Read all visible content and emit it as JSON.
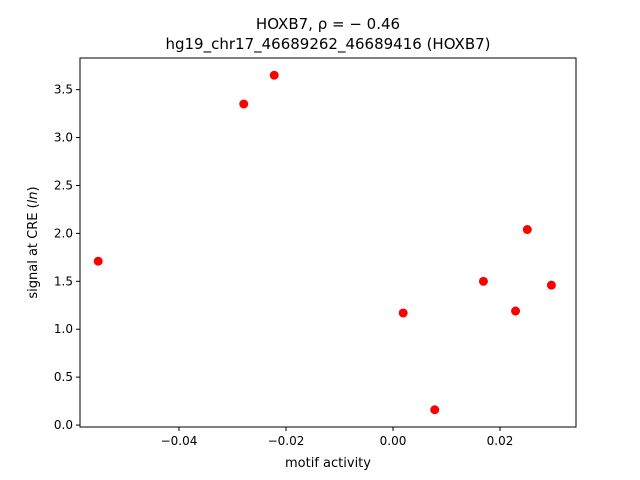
{
  "chart_data": {
    "type": "scatter",
    "title": "HOXB7, ρ = − 0.46",
    "subtitle": "hg19_chr17_46689262_46689416 (HOXB7)",
    "xlabel": "motif activity",
    "ylabel_prefix": "signal at CRE (",
    "ylabel_italic": "ln",
    "ylabel_suffix": ")",
    "xlim": [
      -0.0585,
      0.0342
    ],
    "ylim": [
      -0.02,
      3.83
    ],
    "xticks": [
      -0.04,
      -0.02,
      0.0,
      0.02
    ],
    "xtick_labels": [
      "−0.04",
      "−0.02",
      "0.00",
      "0.02"
    ],
    "yticks": [
      0.0,
      0.5,
      1.0,
      1.5,
      2.0,
      2.5,
      3.0,
      3.5
    ],
    "ytick_labels": [
      "0.0",
      "0.5",
      "1.0",
      "1.5",
      "2.0",
      "2.5",
      "3.0",
      "3.5"
    ],
    "grid": false,
    "marker_color": "#ff0000",
    "points": [
      {
        "x": -0.0551,
        "y": 1.71
      },
      {
        "x": -0.0279,
        "y": 3.35
      },
      {
        "x": -0.0222,
        "y": 3.65
      },
      {
        "x": 0.0019,
        "y": 1.17
      },
      {
        "x": 0.0078,
        "y": 0.16
      },
      {
        "x": 0.0169,
        "y": 1.5
      },
      {
        "x": 0.0229,
        "y": 1.19
      },
      {
        "x": 0.0251,
        "y": 2.04
      },
      {
        "x": 0.0296,
        "y": 1.46
      }
    ]
  }
}
